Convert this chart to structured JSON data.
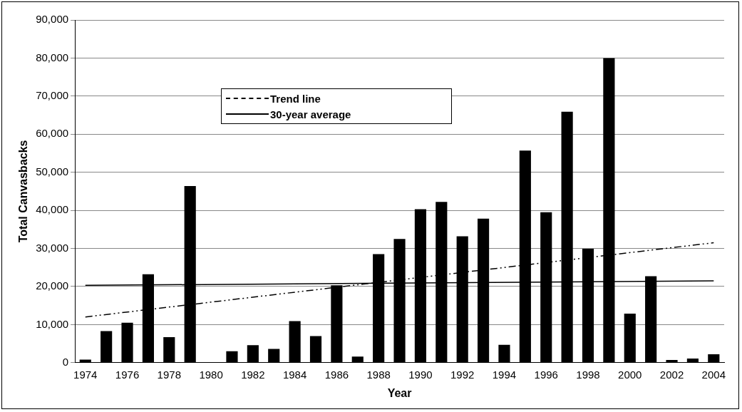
{
  "chart_data": {
    "type": "bar",
    "xlabel": "Year",
    "ylabel": "Total Canvasbacks",
    "categories": [
      "1974",
      null,
      "1976",
      null,
      "1978",
      null,
      "1980",
      null,
      "1982",
      null,
      "1984",
      null,
      "1986",
      null,
      "1988",
      null,
      "1990",
      null,
      "1992",
      null,
      "1994",
      null,
      "1996",
      null,
      "1998",
      null,
      "2000",
      null,
      "2002",
      null,
      "2004"
    ],
    "series": [
      {
        "color": "#000000",
        "values": [
          800,
          8300,
          10500,
          23200,
          6700,
          46400,
          0,
          3000,
          4600,
          3600,
          10900,
          7000,
          20300,
          1600,
          28500,
          32500,
          40300,
          42200,
          33200,
          37800,
          4700,
          55700,
          39500,
          65900,
          29900,
          80000,
          12900,
          22700,
          700,
          1100,
          2200
        ]
      },
      {
        "type": "line",
        "name": "Trend line",
        "color": "#000000",
        "line_style": "dashed",
        "values": [
          12000,
          null,
          null,
          null,
          null,
          null,
          null,
          null,
          null,
          null,
          null,
          null,
          null,
          null,
          null,
          null,
          null,
          null,
          null,
          null,
          null,
          null,
          null,
          null,
          null,
          null,
          null,
          null,
          null,
          null,
          31500
        ]
      },
      {
        "type": "line",
        "name": "30-year average",
        "color": "#000000",
        "line_style": "solid",
        "values": [
          20300,
          null,
          null,
          null,
          null,
          null,
          null,
          null,
          null,
          null,
          null,
          null,
          null,
          null,
          null,
          null,
          null,
          null,
          null,
          null,
          null,
          null,
          null,
          null,
          null,
          null,
          null,
          null,
          null,
          null,
          21500
        ]
      }
    ],
    "ylim": [
      0,
      90000
    ],
    "yticks": [
      {
        "value": 0,
        "label": "0"
      },
      {
        "value": 10000,
        "label": "10,000"
      },
      {
        "value": 20000,
        "label": "20,000"
      },
      {
        "value": 30000,
        "label": "30,000"
      },
      {
        "value": 40000,
        "label": "40,000"
      },
      {
        "value": 50000,
        "label": "50,000"
      },
      {
        "value": 60000,
        "label": "60,000"
      },
      {
        "value": 70000,
        "label": "70,000"
      },
      {
        "value": 80000,
        "label": "80,000"
      },
      {
        "value": 90000,
        "label": "90,000"
      }
    ],
    "grid": "y",
    "legend": "top left",
    "marker": "none"
  }
}
